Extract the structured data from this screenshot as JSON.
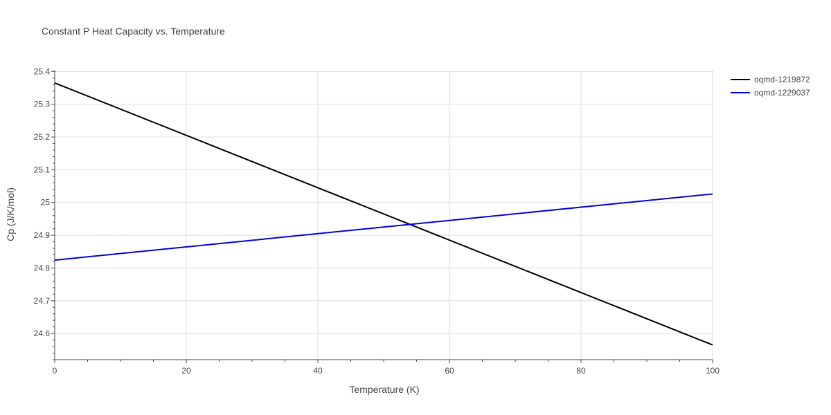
{
  "chart_data": {
    "type": "line",
    "title": "Constant P Heat Capacity vs. Temperature",
    "xlabel": "Temperature (K)",
    "ylabel": "Cp (J/K/mol)",
    "xlim": [
      0,
      100
    ],
    "ylim": [
      24.52,
      25.405
    ],
    "x_ticks": [
      0,
      20,
      40,
      60,
      80,
      100
    ],
    "x_tick_labels": [
      "0",
      "20",
      "40",
      "60",
      "80",
      "100"
    ],
    "y_ticks": [
      24.6,
      24.7,
      24.8,
      24.9,
      25.0,
      25.1,
      25.2,
      25.3,
      25.4
    ],
    "y_tick_labels": [
      "24.6",
      "24.7",
      "24.8",
      "24.9",
      "25",
      "25.1",
      "25.2",
      "25.3",
      "25.4"
    ],
    "grid": true,
    "legend_position": "top-right",
    "series": [
      {
        "name": "oqmd-1219872",
        "color": "#000000",
        "x": [
          0,
          100
        ],
        "y": [
          25.365,
          24.565
        ]
      },
      {
        "name": "oqmd-1229037",
        "color": "#0000dd",
        "x": [
          0,
          100
        ],
        "y": [
          24.824,
          25.026
        ]
      }
    ]
  }
}
